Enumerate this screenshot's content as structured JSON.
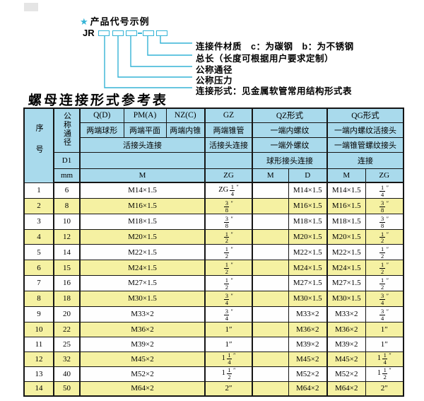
{
  "colors": {
    "accent_cyan": "#35b4d6",
    "header_bg": "#a9daec",
    "row_alt": "#f5f1a2",
    "border": "#151515"
  },
  "diagram": {
    "star": "★",
    "title": "产品代号示例",
    "prefix": "JR",
    "labels": [
      "连接件材质　c：为碳钢　b：为不锈钢",
      "总长（长度可根据用户要求定制）",
      "公称通径",
      "公称压力",
      "连接形式：见金属软管常用结构形式表"
    ]
  },
  "table": {
    "title": "螺母连接形式参考表",
    "inch_mark": "″",
    "header": {
      "col_seq": "序号",
      "col_dn": "公称通径",
      "d1": "D1",
      "mm": "mm",
      "groups": [
        {
          "code": "Q(D)",
          "ends": "两端球形"
        },
        {
          "code": "PM(A)",
          "ends": "两端平面"
        },
        {
          "code": "NZ(C)",
          "ends": "两端内锥"
        },
        {
          "code": "GZ",
          "ends": "两端锥管",
          "row3": "活接头连接"
        },
        {
          "code": "QZ形式",
          "ends": "一端内螺纹",
          "row3": "一端外螺纹",
          "row4": "球形接头连接"
        },
        {
          "code": "QG形式",
          "ends": "一端内螺纹活接头",
          "row3": "一端锥管螺纹接头",
          "row4": "连接"
        }
      ],
      "row3_union": "活接头连接",
      "units": [
        "M",
        "ZG",
        "M",
        "D",
        "M",
        "ZG"
      ]
    },
    "rows": [
      {
        "no": "1",
        "dn": "6",
        "m": "M14×1.5",
        "gz": {
          "pre": "ZG",
          "num": "1",
          "den": "4"
        },
        "qzm": "",
        "qzd": "M14×1.5",
        "qgm": "M14×1.5",
        "qgzg": {
          "num": "1",
          "den": "4"
        }
      },
      {
        "no": "2",
        "dn": "8",
        "m": "M16×1.5",
        "gz": {
          "num": "3",
          "den": "8"
        },
        "qzm": "",
        "qzd": "M16×1.5",
        "qgm": "M16×1.5",
        "qgzg": {
          "num": "3",
          "den": "8"
        }
      },
      {
        "no": "3",
        "dn": "10",
        "m": "M18×1.5",
        "gz": {
          "num": "3",
          "den": "8"
        },
        "qzm": "",
        "qzd": "M18×1.5",
        "qgm": "M18×1.5",
        "qgzg": {
          "num": "3",
          "den": "8"
        }
      },
      {
        "no": "4",
        "dn": "12",
        "m": "M20×1.5",
        "gz": {
          "num": "1",
          "den": "2"
        },
        "qzm": "",
        "qzd": "M20×1.5",
        "qgm": "M20×1.5",
        "qgzg": {
          "num": "1",
          "den": "2"
        }
      },
      {
        "no": "5",
        "dn": "14",
        "m": "M22×1.5",
        "gz": {
          "num": "1",
          "den": "2"
        },
        "qzm": "",
        "qzd": "M22×1.5",
        "qgm": "M22×1.5",
        "qgzg": {
          "num": "1",
          "den": "2"
        }
      },
      {
        "no": "6",
        "dn": "15",
        "m": "M24×1.5",
        "gz": {
          "num": "1",
          "den": "2"
        },
        "qzm": "",
        "qzd": "M24×1.5",
        "qgm": "M24×1.5",
        "qgzg": {
          "num": "1",
          "den": "2"
        }
      },
      {
        "no": "7",
        "dn": "16",
        "m": "M27×1.5",
        "gz": {
          "num": "1",
          "den": "2"
        },
        "qzm": "",
        "qzd": "M27×1.5",
        "qgm": "M27×1.5",
        "qgzg": {
          "num": "1",
          "den": "2"
        }
      },
      {
        "no": "8",
        "dn": "18",
        "m": "M30×1.5",
        "gz": {
          "num": "3",
          "den": "4"
        },
        "qzm": "",
        "qzd": "M30×1.5",
        "qgm": "M30×1.5",
        "qgzg": {
          "num": "3",
          "den": "4"
        }
      },
      {
        "no": "9",
        "dn": "20",
        "m": "M33×2",
        "gz": {
          "num": "3",
          "den": "4"
        },
        "qzm": "",
        "qzd": "M33×2",
        "qgm": "M33×2",
        "qgzg": {
          "num": "3",
          "den": "4"
        }
      },
      {
        "no": "10",
        "dn": "22",
        "m": "M36×2",
        "gz": {
          "text": "1″"
        },
        "qzm": "",
        "qzd": "M36×2",
        "qgm": "M36×2",
        "qgzg": {
          "text": "1″"
        }
      },
      {
        "no": "11",
        "dn": "25",
        "m": "M39×2",
        "gz": {
          "text": "1″"
        },
        "qzm": "",
        "qzd": "M39×2",
        "qgm": "M39×2",
        "qgzg": {
          "text": "1″"
        }
      },
      {
        "no": "12",
        "dn": "32",
        "m": "M45×2",
        "gz": {
          "whole": "1",
          "num": "1",
          "den": "4"
        },
        "qzm": "",
        "qzd": "M45×2",
        "qgm": "M45×2",
        "qgzg": {
          "whole": "1",
          "num": "1",
          "den": "4"
        }
      },
      {
        "no": "13",
        "dn": "40",
        "m": "M52×2",
        "gz": {
          "whole": "1",
          "num": "1",
          "den": "2"
        },
        "qzm": "",
        "qzd": "M52×2",
        "qgm": "M52×2",
        "qgzg": {
          "whole": "1",
          "num": "1",
          "den": "2"
        }
      },
      {
        "no": "14",
        "dn": "50",
        "m": "M64×2",
        "gz": {
          "text": "2″"
        },
        "qzm": "",
        "qzd": "M64×2",
        "qgm": "M64×2",
        "qgzg": {
          "text": "2″"
        }
      }
    ]
  }
}
